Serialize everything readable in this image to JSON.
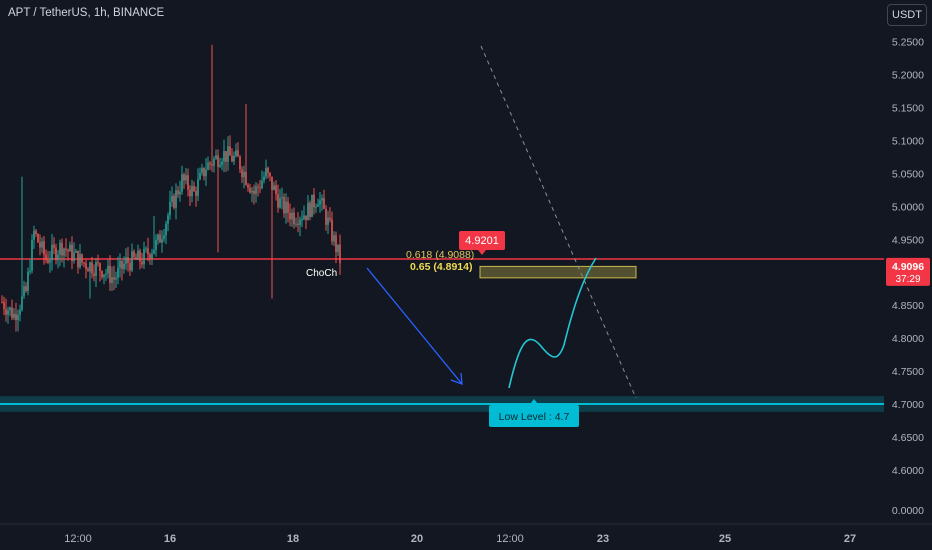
{
  "header": {
    "title": "APT / TetherUS, 1h, BINANCE",
    "currency": "USDT"
  },
  "price_scale": {
    "ticks": [
      "5.2500",
      "5.2000",
      "5.1500",
      "5.1000",
      "5.0500",
      "5.0000",
      "4.9500",
      "4.9000",
      "4.8500",
      "4.8000",
      "4.7500",
      "4.7000",
      "4.6500",
      "4.6000",
      "0.0000"
    ],
    "last_price": "4.9096",
    "countdown": "37:29"
  },
  "time_scale": {
    "ticks": [
      "12:00",
      "16",
      "18",
      "20",
      "12:00",
      "23",
      "25",
      "27"
    ]
  },
  "annotations": {
    "resistance_label": "4.9201",
    "fib_618": "0.618 (4.9088)",
    "fib_65": "0.65 (4.8914)",
    "choch": "ChoCh",
    "low_level": "Low  Level : 4.7"
  },
  "chart_data": {
    "type": "candlestick",
    "title": "APT / TetherUS, 1h, BINANCE",
    "y_range": [
      4.555,
      5.265
    ],
    "resistance": 4.9201,
    "support": 4.7,
    "fib_zone": [
      4.8914,
      4.9088
    ],
    "last_price": 4.9096,
    "colors": {
      "up": "#26a69a",
      "down": "#ef5350",
      "resistance": "#f23645",
      "support": "#00bcd4",
      "fib": "#c8b94a",
      "arrow": "#2962ff",
      "path": "#22c7d6"
    }
  }
}
